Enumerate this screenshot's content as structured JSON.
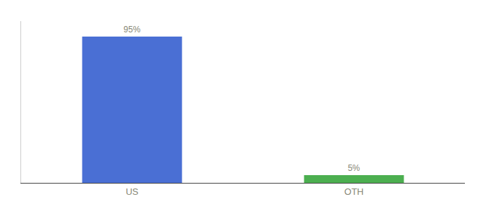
{
  "chart_data": {
    "type": "bar",
    "categories": [
      "US",
      "OTH"
    ],
    "values": [
      95,
      5
    ],
    "value_labels": [
      "95%",
      "5%"
    ],
    "colors": [
      "#4a6fd4",
      "#4caf50"
    ],
    "data_labels": true,
    "ylim": [
      0,
      105
    ],
    "grid": false,
    "tick_labels": "x"
  }
}
